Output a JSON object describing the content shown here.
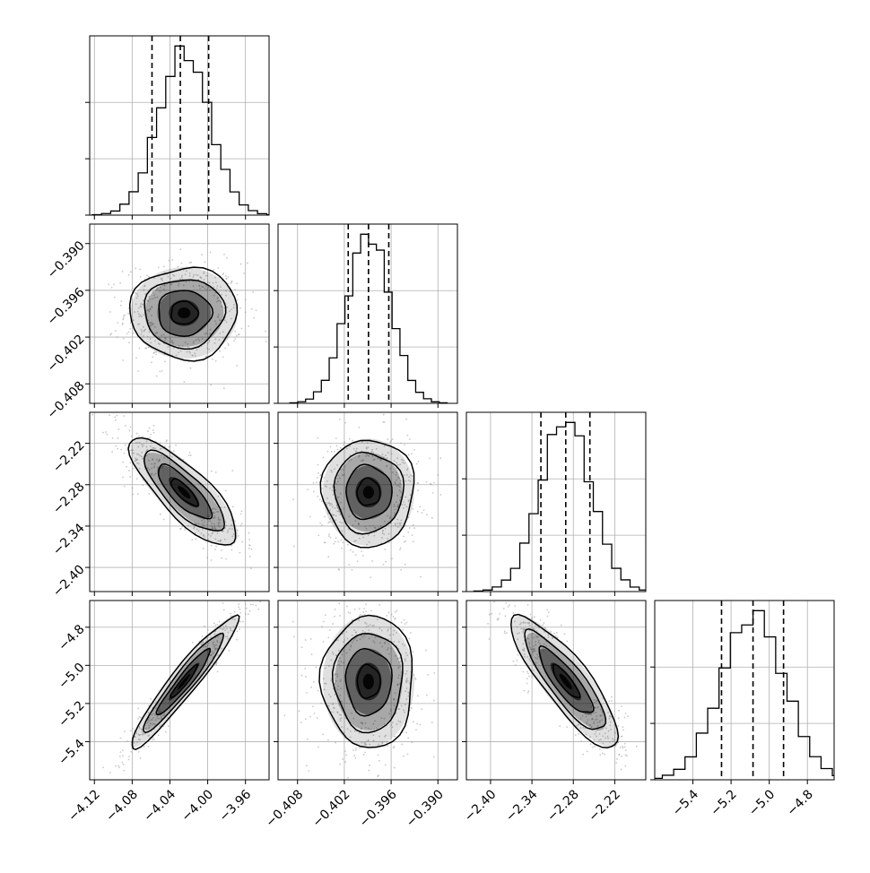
{
  "chart_data": {
    "type": "corner",
    "colors": {
      "line": "#000000",
      "grid": "#b0b0b0",
      "points": "#9a9a9a",
      "density": "#000000"
    },
    "grid": true,
    "params": [
      {
        "range": [
          -4.125,
          -3.935
        ],
        "ticks": [
          -4.12,
          -4.08,
          -4.04,
          -4.0,
          -3.96
        ],
        "tick_labels": [
          "−4.12",
          "−4.08",
          "−4.04",
          "−4.00",
          "−3.96"
        ],
        "mean": -4.025,
        "sd": 0.027,
        "quantiles": [
          -4.059,
          -4.029,
          -3.999
        ]
      },
      {
        "range": [
          -0.4105,
          -0.3875
        ],
        "ticks": [
          -0.408,
          -0.402,
          -0.396,
          -0.39
        ],
        "tick_labels": [
          "−0.408",
          "−0.402",
          "−0.396",
          "−0.390"
        ],
        "mean": -0.3989,
        "sd": 0.0028,
        "quantiles": [
          -0.4015,
          -0.3989,
          -0.3963
        ]
      },
      {
        "range": [
          -2.435,
          -2.175
        ],
        "ticks": [
          -2.4,
          -2.34,
          -2.28,
          -2.22
        ],
        "tick_labels": [
          "−2.40",
          "−2.34",
          "−2.28",
          "−2.22"
        ],
        "mean": -2.291,
        "sd": 0.037,
        "quantiles": [
          -2.327,
          -2.291,
          -2.256
        ]
      },
      {
        "range": [
          -5.6,
          -4.66
        ],
        "ticks": [
          -5.4,
          -5.2,
          -5.0,
          -4.8
        ],
        "tick_labels": [
          "−5.4",
          "−5.2",
          "−5.0",
          "−4.8"
        ],
        "mean": -5.085,
        "sd": 0.165,
        "quantiles": [
          -5.25,
          -5.085,
          -4.925
        ]
      }
    ],
    "correlations": [
      {
        "i": 1,
        "j": 0,
        "rho": 0.0
      },
      {
        "i": 2,
        "j": 0,
        "rho": -0.8
      },
      {
        "i": 2,
        "j": 1,
        "rho": 0.0
      },
      {
        "i": 3,
        "j": 0,
        "rho": 0.95
      },
      {
        "i": 3,
        "j": 1,
        "rho": 0.0
      },
      {
        "i": 3,
        "j": 2,
        "rho": -0.85
      }
    ],
    "histogram_bins": 20,
    "contour_levels": [
      0.5,
      1.0,
      1.5,
      2.0
    ],
    "quantile_lines": "dashed"
  }
}
